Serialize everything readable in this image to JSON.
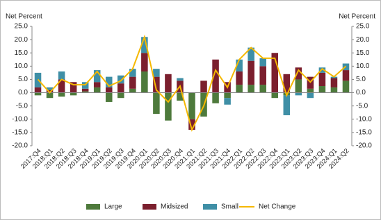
{
  "chart_data": {
    "type": "stacked-bar-line",
    "y_label": "Net Percent",
    "y2_label": "Net Percent",
    "categories": [
      "2017:Q4",
      "2018:Q1",
      "2018:Q2",
      "2018:Q3",
      "2018:Q4",
      "2019:Q1",
      "2019:Q2",
      "2019:Q3",
      "2019:Q4",
      "2020:Q1",
      "2020:Q2",
      "2020:Q3",
      "2020:Q4",
      "2021:Q1",
      "2021:Q2",
      "2021:Q3",
      "2021:Q4",
      "2022:Q1",
      "2022:Q2",
      "2022:Q3",
      "2022:Q4",
      "2023:Q1",
      "2023:Q2",
      "2023:Q3",
      "2023:Q4",
      "2024:Q1",
      "2024:Q2"
    ],
    "series": [
      {
        "name": "Large",
        "color": "#4e7a3c",
        "kind": "bar",
        "values": [
          -1,
          -2,
          -1.5,
          -1,
          0.5,
          2,
          -3.5,
          -2,
          1.5,
          8,
          -8,
          -10.5,
          -3,
          -10,
          -9,
          -4,
          -2,
          3,
          3,
          3,
          -2,
          -1,
          5,
          1.5,
          2.5,
          2,
          4.5
        ]
      },
      {
        "name": "Midsized",
        "color": "#7b1f2e",
        "kind": "bar",
        "values": [
          2,
          1,
          5,
          4,
          1,
          2,
          2,
          3.5,
          4.5,
          7,
          6,
          7,
          4.5,
          -4,
          4.5,
          12.5,
          4,
          5,
          9,
          7,
          15,
          7,
          4.5,
          4.5,
          5,
          3.5,
          4
        ]
      },
      {
        "name": "Small",
        "color": "#3f8fa6",
        "kind": "bar",
        "values": [
          5.5,
          1,
          3,
          0,
          2.5,
          4.5,
          4,
          3,
          3,
          6,
          3,
          0,
          1,
          0,
          0,
          0,
          -2.5,
          4.5,
          5,
          3,
          0,
          -7.5,
          -1,
          -2,
          2,
          0.5,
          2.5
        ]
      },
      {
        "name": "Net Change",
        "color": "#f5b800",
        "kind": "line",
        "values": [
          5,
          0,
          5,
          3,
          3,
          8,
          2.5,
          4.5,
          9,
          21,
          1,
          -3.5,
          2.5,
          -14,
          -5,
          8.5,
          2,
          12.5,
          17,
          13,
          13,
          -1,
          8.5,
          4,
          9,
          6,
          10
        ]
      }
    ],
    "ylim": [
      -20,
      25
    ],
    "yticks": [
      {
        "value": 25,
        "label": "25.0"
      },
      {
        "value": 20,
        "label": "20.0"
      },
      {
        "value": 15,
        "label": "15.0"
      },
      {
        "value": 10,
        "label": "10.0"
      },
      {
        "value": 5,
        "label": "5.0"
      },
      {
        "value": 0,
        "label": "0.0"
      },
      {
        "value": -5,
        "label": "-5.0"
      },
      {
        "value": -10,
        "label": "-10.0"
      },
      {
        "value": -15,
        "label": "-15.0"
      },
      {
        "value": -20,
        "label": "-20.0"
      }
    ],
    "y2lim": [
      -20,
      25
    ],
    "y2ticks": [
      {
        "value": 25,
        "label": "25.0"
      },
      {
        "value": 20,
        "label": "20.0"
      },
      {
        "value": 15,
        "label": "15.0"
      },
      {
        "value": 10,
        "label": "10.0"
      },
      {
        "value": 5,
        "label": "5.0"
      },
      {
        "value": 0,
        "label": "0.0"
      },
      {
        "value": -5,
        "label": "-5.0"
      },
      {
        "value": -10,
        "label": "-10.0"
      },
      {
        "value": -15,
        "label": "-15.0"
      },
      {
        "value": -20,
        "label": "-20.0"
      }
    ],
    "legend": "bottom"
  }
}
